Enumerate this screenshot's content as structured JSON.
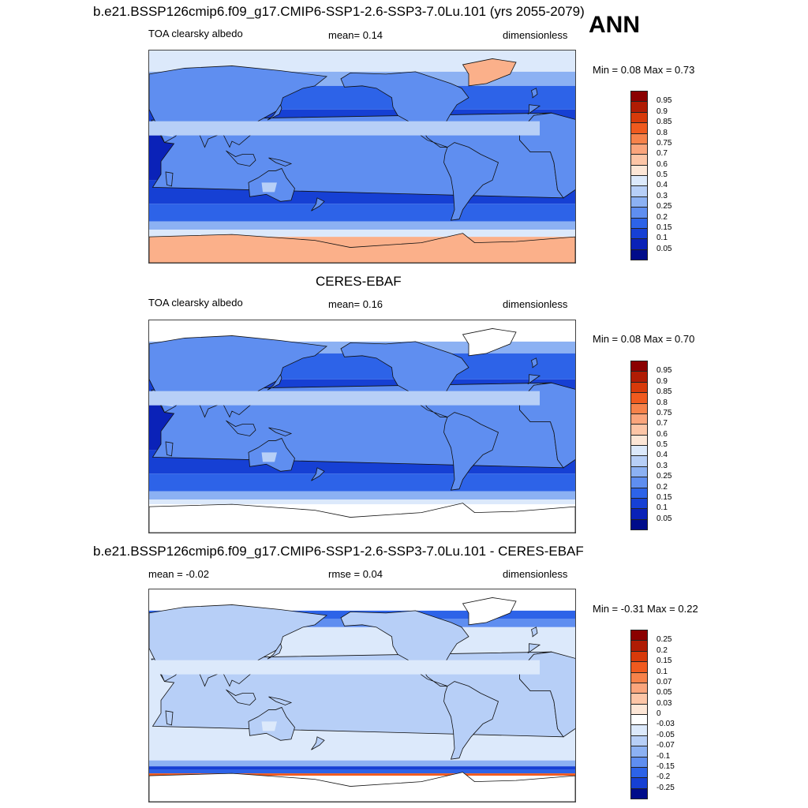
{
  "season": "ANN",
  "panels": [
    {
      "id": "model",
      "title": "b.e21.BSSP126cmip6.f09_g17.CMIP6-SSP1-2.6-SSP3-7.0Lu.101 (yrs 2055-2079)",
      "left_label": "TOA clearsky albedo",
      "center_label": "mean=   0.14",
      "right_label": "dimensionless",
      "minmax": "Min =   0.08 Max =   0.73",
      "levels": [
        "0.95",
        "0.9",
        "0.85",
        "0.8",
        "0.75",
        "0.7",
        "0.6",
        "0.5",
        "0.4",
        "0.3",
        "0.25",
        "0.2",
        "0.15",
        "0.1",
        "0.05"
      ],
      "colors": [
        "#8b0000",
        "#b01c04",
        "#d73a0a",
        "#f05a1e",
        "#f7824a",
        "#fba57c",
        "#fdc5a6",
        "#fde6d6",
        "#dce9fb",
        "#b7cff7",
        "#8cb1f3",
        "#5f8ef0",
        "#2d63e8",
        "#1640d4",
        "#0a22b8",
        "#000c8a"
      ],
      "map_style": "model"
    },
    {
      "id": "obs",
      "title": "CERES-EBAF",
      "left_label": "TOA clearsky albedo",
      "center_label": "mean=   0.16",
      "right_label": "dimensionless",
      "minmax": "Min =   0.08 Max =   0.70",
      "levels": [
        "0.95",
        "0.9",
        "0.85",
        "0.8",
        "0.75",
        "0.7",
        "0.6",
        "0.5",
        "0.4",
        "0.3",
        "0.25",
        "0.2",
        "0.15",
        "0.1",
        "0.05"
      ],
      "colors": [
        "#8b0000",
        "#b01c04",
        "#d73a0a",
        "#f05a1e",
        "#f7824a",
        "#fba57c",
        "#fdc5a6",
        "#fde6d6",
        "#dce9fb",
        "#b7cff7",
        "#8cb1f3",
        "#5f8ef0",
        "#2d63e8",
        "#1640d4",
        "#0a22b8",
        "#000c8a"
      ],
      "map_style": "obs"
    },
    {
      "id": "diff",
      "title": "b.e21.BSSP126cmip6.f09_g17.CMIP6-SSP1-2.6-SSP3-7.0Lu.101 - CERES-EBAF",
      "left_label": "mean =  -0.02",
      "center_label": "rmse =   0.04",
      "right_label": "dimensionless",
      "minmax": "Min =  -0.31 Max =   0.22",
      "levels": [
        "0.25",
        "0.2",
        "0.15",
        "0.1",
        "0.07",
        "0.05",
        "0.03",
        "0",
        "-0.03",
        "-0.05",
        "-0.07",
        "-0.1",
        "-0.15",
        "-0.2",
        "-0.25"
      ],
      "colors": [
        "#8b0000",
        "#b01c04",
        "#d73a0a",
        "#f05a1e",
        "#f7824a",
        "#fba57c",
        "#fdc5a6",
        "#fde6d6",
        "#ffffff",
        "#dce9fb",
        "#b7cff7",
        "#8cb1f3",
        "#5f8ef0",
        "#2d63e8",
        "#1640d4",
        "#000c8a"
      ],
      "map_style": "diff"
    }
  ]
}
